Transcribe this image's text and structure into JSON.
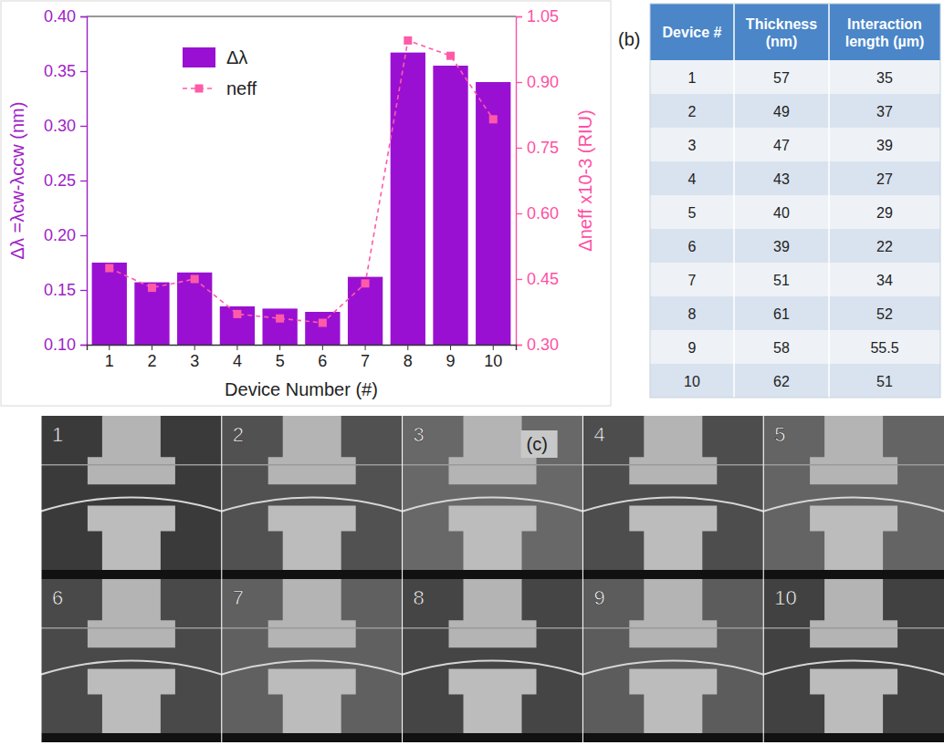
{
  "chart_data": {
    "type": "bar",
    "xlabel": "Device Number (#)",
    "ylabel": "Δλ =λcw-λccw (nm)",
    "y2label": "Δneff x10-3 (RIU)",
    "categories": [
      "1",
      "2",
      "3",
      "4",
      "5",
      "6",
      "7",
      "8",
      "9",
      "10"
    ],
    "series": [
      {
        "name": "Δλ",
        "type": "bar",
        "color": "#9a10d2",
        "values": [
          0.175,
          0.157,
          0.166,
          0.135,
          0.133,
          0.13,
          0.162,
          0.367,
          0.355,
          0.34
        ]
      },
      {
        "name": "neff",
        "type": "line",
        "axis": "y2",
        "color": "#ff5aa8",
        "marker": "square",
        "line_style": "dashed",
        "values": [
          0.475,
          0.43,
          0.45,
          0.37,
          0.36,
          0.35,
          0.44,
          0.995,
          0.96,
          0.815
        ]
      }
    ],
    "ylim": [
      0.1,
      0.4
    ],
    "yticks": [
      {
        "value": 0.1,
        "label": "0.10"
      },
      0.15,
      {
        "value": 0.2,
        "label": "0.20"
      },
      0.25,
      {
        "value": 0.3,
        "label": "0.30"
      },
      0.35,
      {
        "value": 0.4,
        "label": "0.40"
      }
    ],
    "y2lim": [
      0.3,
      1.05
    ],
    "y2ticks": [
      {
        "value": 0.3,
        "label": "0.30"
      },
      0.45,
      {
        "value": 0.6,
        "label": "0.60"
      },
      0.75,
      {
        "value": 0.9,
        "label": "0.90"
      },
      1.05
    ],
    "legend": "top-left",
    "grid": false
  },
  "table": {
    "panel_label": "(b)",
    "header": [
      "Device #",
      "Thickness (nm)",
      "Interaction length (µm)"
    ],
    "rows": [
      [
        1,
        57,
        35
      ],
      [
        2,
        49,
        37
      ],
      [
        3,
        47,
        39
      ],
      [
        4,
        43,
        27
      ],
      [
        5,
        40,
        29
      ],
      [
        6,
        39,
        22
      ],
      [
        7,
        51,
        34
      ],
      [
        8,
        61,
        52
      ],
      [
        9,
        58,
        55.5
      ],
      [
        10,
        62,
        51
      ]
    ]
  },
  "images": {
    "panel_label": "(c)",
    "labels": [
      "1",
      "2",
      "3",
      "4",
      "5",
      "6",
      "7",
      "8",
      "9",
      "10"
    ]
  }
}
